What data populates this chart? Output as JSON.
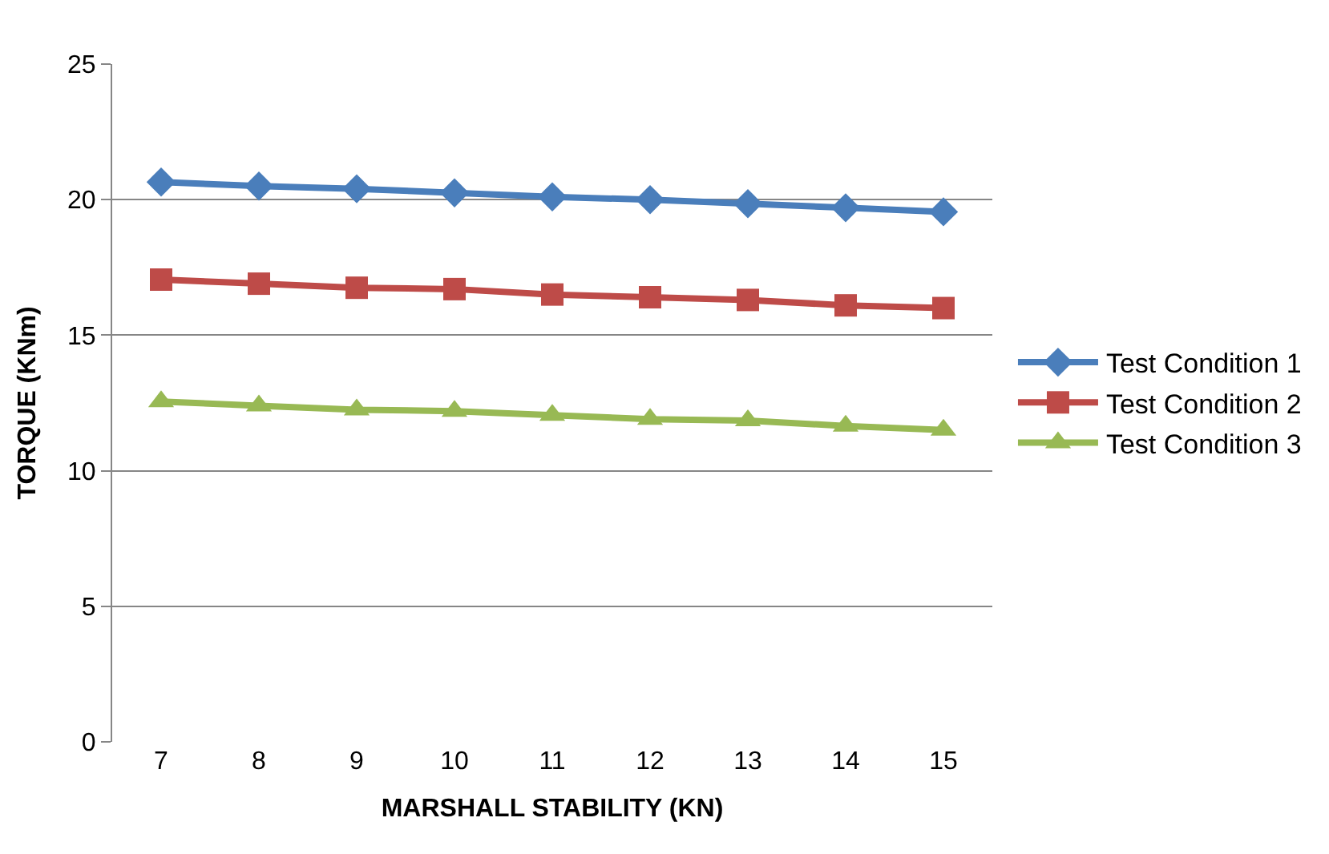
{
  "chart_data": {
    "type": "line",
    "xlabel": "MARSHALL STABILITY (KN)",
    "ylabel": "TORQUE (KNm)",
    "categories": [
      "7",
      "8",
      "9",
      "10",
      "11",
      "12",
      "13",
      "14",
      "15"
    ],
    "series": [
      {
        "name": "Test Condition 1",
        "color": "#4a7ebb",
        "marker": "diamond",
        "values": [
          20.65,
          20.5,
          20.4,
          20.25,
          20.1,
          20.0,
          19.85,
          19.7,
          19.55
        ]
      },
      {
        "name": "Test Condition 2",
        "color": "#be4b48",
        "marker": "square",
        "values": [
          17.05,
          16.9,
          16.75,
          16.7,
          16.5,
          16.4,
          16.3,
          16.1,
          16.0
        ]
      },
      {
        "name": "Test Condition 3",
        "color": "#98b954",
        "marker": "triangle",
        "values": [
          12.55,
          12.4,
          12.25,
          12.2,
          12.05,
          11.9,
          11.85,
          11.65,
          11.5
        ]
      }
    ],
    "ylim": [
      0,
      25
    ],
    "yticks": [
      0,
      5,
      10,
      15,
      20,
      25
    ],
    "grid": "y",
    "legend": "right",
    "line_style": "solid"
  }
}
